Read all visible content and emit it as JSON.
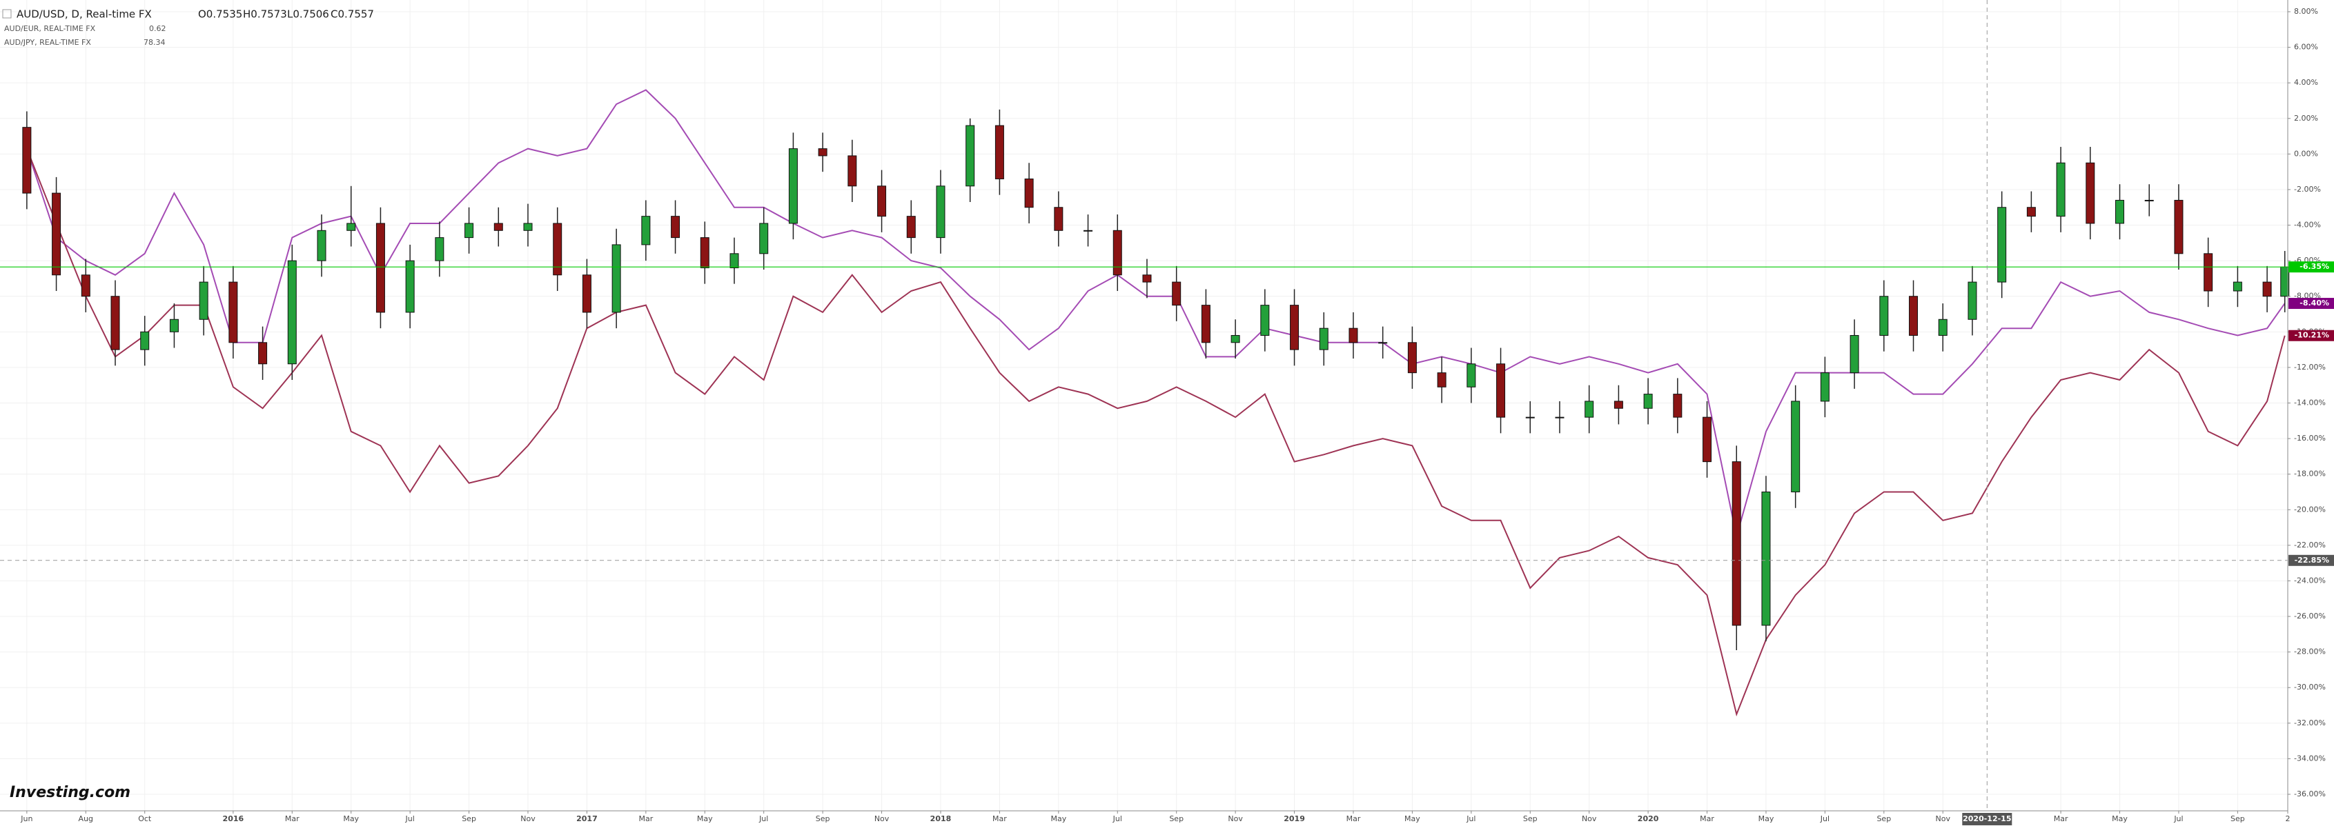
{
  "chart_data": {
    "type": "candlestick",
    "logo": "Investing.com",
    "grid": true,
    "x": [
      0,
      1,
      2,
      3,
      4,
      5,
      6,
      7,
      8,
      9,
      10,
      11,
      12,
      13,
      14,
      15,
      16,
      17,
      18,
      19,
      20,
      21,
      22,
      23,
      24,
      25,
      26,
      27,
      28,
      29,
      30,
      31,
      32,
      33,
      34,
      35,
      36,
      37,
      38,
      39,
      40,
      41,
      42,
      43,
      44,
      45,
      46,
      47,
      48,
      49,
      50,
      51,
      52,
      53,
      54,
      55,
      56,
      57,
      58,
      59,
      60,
      61,
      62,
      63,
      64,
      65,
      66,
      67,
      68,
      69,
      70,
      71,
      72,
      73,
      74,
      75,
      76,
      76.6
    ],
    "xlim": [
      -0.91,
      76.7
    ],
    "xticks": [
      {
        "value": 0,
        "label": "Jun"
      },
      {
        "value": 2,
        "label": "Aug"
      },
      {
        "value": 4,
        "label": "Oct"
      },
      {
        "value": 7,
        "label": "2016"
      },
      {
        "value": 9,
        "label": "Mar"
      },
      {
        "value": 11,
        "label": "May"
      },
      {
        "value": 13,
        "label": "Jul"
      },
      {
        "value": 15,
        "label": "Sep"
      },
      {
        "value": 17,
        "label": "Nov"
      },
      {
        "value": 19,
        "label": "2017"
      },
      {
        "value": 21,
        "label": "Mar"
      },
      {
        "value": 23,
        "label": "May"
      },
      {
        "value": 25,
        "label": "Jul"
      },
      {
        "value": 27,
        "label": "Sep"
      },
      {
        "value": 29,
        "label": "Nov"
      },
      {
        "value": 31,
        "label": "2018"
      },
      {
        "value": 33,
        "label": "Mar"
      },
      {
        "value": 35,
        "label": "May"
      },
      {
        "value": 37,
        "label": "Jul"
      },
      {
        "value": 39,
        "label": "Sep"
      },
      {
        "value": 41,
        "label": "Nov"
      },
      {
        "value": 43,
        "label": "2019"
      },
      {
        "value": 45,
        "label": "Mar"
      },
      {
        "value": 47,
        "label": "May"
      },
      {
        "value": 49,
        "label": "Jul"
      },
      {
        "value": 51,
        "label": "Sep"
      },
      {
        "value": 53,
        "label": "Nov"
      },
      {
        "value": 55,
        "label": "2020"
      },
      {
        "value": 57,
        "label": "Mar"
      },
      {
        "value": 59,
        "label": "May"
      },
      {
        "value": 61,
        "label": "Jul"
      },
      {
        "value": 63,
        "label": "Sep"
      },
      {
        "value": 65,
        "label": "Nov"
      },
      {
        "value": 69,
        "label": "Mar"
      },
      {
        "value": 71,
        "label": "May"
      },
      {
        "value": 73,
        "label": "Jul"
      },
      {
        "value": 75,
        "label": "Sep"
      },
      {
        "value": 76.7,
        "label": "2"
      }
    ],
    "ylim": [
      8,
      -36
    ],
    "yticks": [
      {
        "value": 8,
        "label": "8.00%"
      },
      {
        "value": 6,
        "label": "6.00%"
      },
      {
        "value": 4,
        "label": "4.00%"
      },
      {
        "value": 2,
        "label": "2.00%"
      },
      {
        "value": 0,
        "label": "0.00%"
      },
      {
        "value": -2,
        "label": "-2.00%"
      },
      {
        "value": -4,
        "label": "-4.00%"
      },
      {
        "value": -6,
        "label": "-6.00%"
      },
      {
        "value": -8,
        "label": "-8.00%"
      },
      {
        "value": -10,
        "label": "-10.00%"
      },
      {
        "value": -12,
        "label": "-12.00%"
      },
      {
        "value": -14,
        "label": "-14.00%"
      },
      {
        "value": -16,
        "label": "-16.00%"
      },
      {
        "value": -18,
        "label": "-18.00%"
      },
      {
        "value": -20,
        "label": "-20.00%"
      },
      {
        "value": -22,
        "label": "-22.00%"
      },
      {
        "value": -24,
        "label": "-24.00%"
      },
      {
        "value": -26,
        "label": "-26.00%"
      },
      {
        "value": -28,
        "label": "-28.00%"
      },
      {
        "value": -30,
        "label": "-30.00%"
      },
      {
        "value": -32,
        "label": "-32.00%"
      },
      {
        "value": -34,
        "label": "-34.00%"
      },
      {
        "value": -36,
        "label": "-36.00%"
      }
    ],
    "crosshair": {
      "x": {
        "value": 66.5,
        "label": "2020-12-15"
      },
      "y": {
        "value": -22.85,
        "label": "-22.85%"
      }
    },
    "series": [
      {
        "name": "AUD/USD, D, Real-time FX",
        "type": "candlestick",
        "quote": [
          "O0.7535",
          "H0.7573",
          "L0.7506",
          "C0.7557"
        ],
        "up_color": "#23a03a",
        "down_color": "#8b1414",
        "color": "#00c800",
        "last_label": "-6.35%",
        "open": [
          1.5,
          -2.2,
          -6.8,
          -8,
          -11,
          -10,
          -9.3,
          -7.2,
          -10.6,
          -11.8,
          -6,
          -4.3,
          -3.9,
          -8.9,
          -6,
          -4.7,
          -3.9,
          -4.3,
          -3.9,
          -6.8,
          -8.9,
          -5.1,
          -3.5,
          -4.7,
          -6.4,
          -5.6,
          -3.9,
          0.3,
          -0.1,
          -1.8,
          -3.5,
          -4.7,
          -1.8,
          1.6,
          -1.4,
          -3,
          -4.3,
          -4.3,
          -6.8,
          -7.2,
          -8.5,
          -10.6,
          -10.2,
          -8.5,
          -11,
          -9.8,
          -10.6,
          -10.6,
          -12.3,
          -13.1,
          -11.8,
          -14.8,
          -14.8,
          -14.8,
          -13.9,
          -14.3,
          -13.5,
          -14.8,
          -17.3,
          -26.5,
          -19,
          -13.9,
          -12.3,
          -10.2,
          -8,
          -10.2,
          -9.3,
          -7.2,
          -3,
          -3.5,
          -0.5,
          -3.9,
          -2.6,
          -2.6,
          -5.6,
          -7.7,
          -7.2,
          -8
        ],
        "high": [
          2.4,
          -1.3,
          -5.9,
          -7.1,
          -9.1,
          -8.4,
          -6.3,
          -6.3,
          -9.7,
          -5.1,
          -3.4,
          -1.8,
          -3.0,
          -5.1,
          -3.8,
          -3.0,
          -3.0,
          -2.8,
          -3.0,
          -5.9,
          -4.2,
          -2.6,
          -2.6,
          -3.8,
          -4.7,
          -3.0,
          1.2,
          1.2,
          0.8,
          -0.9,
          -2.6,
          -0.9,
          2.0,
          2.5,
          -0.5,
          -2.1,
          -3.4,
          -3.4,
          -5.9,
          -6.3,
          -7.6,
          -9.3,
          -7.6,
          -7.6,
          -8.9,
          -8.9,
          -9.7,
          -9.7,
          -11.4,
          -10.9,
          -10.9,
          -13.9,
          -13.9,
          -13.0,
          -13.0,
          -12.6,
          -12.6,
          -13.9,
          -16.4,
          -18.1,
          -13.0,
          -11.4,
          -9.3,
          -7.1,
          -7.1,
          -8.4,
          -6.3,
          -2.1,
          -2.1,
          0.4,
          0.4,
          -1.7,
          -1.7,
          -1.7,
          -4.7,
          -6.3,
          -6.3,
          -5.45
        ],
        "low": [
          -3.1,
          -7.7,
          -8.9,
          -11.9,
          -11.9,
          -10.9,
          -10.2,
          -11.5,
          -12.7,
          -12.7,
          -6.9,
          -5.2,
          -9.8,
          -9.8,
          -6.9,
          -5.6,
          -5.2,
          -5.2,
          -7.7,
          -9.8,
          -9.8,
          -6.0,
          -5.6,
          -7.3,
          -7.3,
          -6.5,
          -4.8,
          -1.0,
          -2.7,
          -4.4,
          -5.6,
          -5.6,
          -2.7,
          -2.3,
          -3.9,
          -5.2,
          -5.2,
          -7.7,
          -8.1,
          -9.4,
          -11.5,
          -11.5,
          -11.1,
          -11.9,
          -11.9,
          -11.5,
          -11.5,
          -13.2,
          -14.0,
          -14.0,
          -15.7,
          -15.7,
          -15.7,
          -15.7,
          -15.2,
          -15.2,
          -15.7,
          -18.2,
          -27.9,
          -27.4,
          -19.9,
          -14.8,
          -13.2,
          -11.1,
          -11.1,
          -11.1,
          -10.2,
          -8.1,
          -4.4,
          -4.4,
          -4.8,
          -4.8,
          -3.5,
          -6.5,
          -8.6,
          -8.6,
          -8.9,
          -8.9
        ],
        "close": [
          -2.2,
          -6.8,
          -8,
          -11,
          -10,
          -9.3,
          -7.2,
          -10.6,
          -11.8,
          -6,
          -4.3,
          -3.9,
          -8.9,
          -6,
          -4.7,
          -3.9,
          -4.3,
          -3.9,
          -6.8,
          -8.9,
          -5.1,
          -3.5,
          -4.7,
          -6.4,
          -5.6,
          -3.9,
          0.3,
          -0.1,
          -1.8,
          -3.5,
          -4.7,
          -1.8,
          1.6,
          -1.4,
          -3,
          -4.3,
          -4.3,
          -6.8,
          -7.2,
          -8.5,
          -10.6,
          -10.2,
          -8.5,
          -11,
          -9.8,
          -10.6,
          -10.6,
          -12.3,
          -13.1,
          -11.8,
          -14.8,
          -14.8,
          -14.8,
          -13.9,
          -14.3,
          -13.5,
          -14.8,
          -17.3,
          -26.5,
          -19,
          -13.9,
          -12.3,
          -10.2,
          -8,
          -10.2,
          -9.3,
          -7.2,
          -3,
          -3.5,
          -0.5,
          -3.9,
          -2.6,
          -2.6,
          -5.6,
          -7.7,
          -7.2,
          -8,
          -6.35
        ]
      },
      {
        "name": "AUD/EUR, REAL-TIME FX",
        "type": "line",
        "quote": "0.62",
        "color": "#a44bb4",
        "label_color": "#800080",
        "last_label": "-8.40%",
        "values": [
          0.3,
          -4.7,
          -6,
          -6.8,
          -5.6,
          -2.2,
          -5.1,
          -10.6,
          -10.6,
          -4.7,
          -3.9,
          -3.5,
          -6.8,
          -3.9,
          -3.9,
          -2.2,
          -0.5,
          0.3,
          -0.1,
          0.3,
          2.8,
          3.6,
          2,
          -0.5,
          -3,
          -3,
          -3.9,
          -4.7,
          -4.3,
          -4.7,
          -6,
          -6.4,
          -8,
          -9.3,
          -11,
          -9.8,
          -7.7,
          -6.8,
          -8,
          -8,
          -11.4,
          -11.4,
          -9.8,
          -10.2,
          -10.6,
          -10.6,
          -10.6,
          -11.8,
          -11.4,
          -11.8,
          -12.3,
          -11.4,
          -11.8,
          -11.4,
          -11.8,
          -12.3,
          -11.8,
          -13.5,
          -21.5,
          -15.6,
          -12.3,
          -12.3,
          -12.3,
          -12.3,
          -13.5,
          -13.5,
          -11.8,
          -9.8,
          -9.8,
          -7.2,
          -8,
          -7.7,
          -8.9,
          -9.3,
          -9.8,
          -10.2,
          -9.8,
          -8.4
        ]
      },
      {
        "name": "AUD/JPY, REAL-TIME FX",
        "type": "line",
        "quote": "78.34",
        "color": "#9e3354",
        "label_color": "#8b0030",
        "last_label": "-10.21%",
        "values": [
          0.3,
          -3.9,
          -8,
          -11.4,
          -10.2,
          -8.5,
          -8.5,
          -13.1,
          -14.3,
          -12.3,
          -10.2,
          -15.6,
          -16.4,
          -19,
          -16.4,
          -18.5,
          -18.1,
          -16.4,
          -14.3,
          -9.8,
          -8.9,
          -8.5,
          -12.3,
          -13.5,
          -11.4,
          -12.7,
          -8,
          -8.9,
          -6.8,
          -8.9,
          -7.7,
          -7.2,
          -9.8,
          -12.3,
          -13.9,
          -13.1,
          -13.5,
          -14.3,
          -13.9,
          -13.1,
          -13.9,
          -14.8,
          -13.5,
          -17.3,
          -16.9,
          -16.4,
          -16,
          -16.4,
          -19.8,
          -20.6,
          -20.6,
          -24.4,
          -22.7,
          -22.3,
          -21.5,
          -22.7,
          -23.1,
          -24.8,
          -31.5,
          -27.3,
          -24.8,
          -23.1,
          -20.2,
          -19,
          -19,
          -20.6,
          -20.2,
          -17.3,
          -14.8,
          -12.7,
          -12.3,
          -12.7,
          -11,
          -12.3,
          -15.6,
          -16.4,
          -13.9,
          -10.21
        ]
      }
    ]
  }
}
